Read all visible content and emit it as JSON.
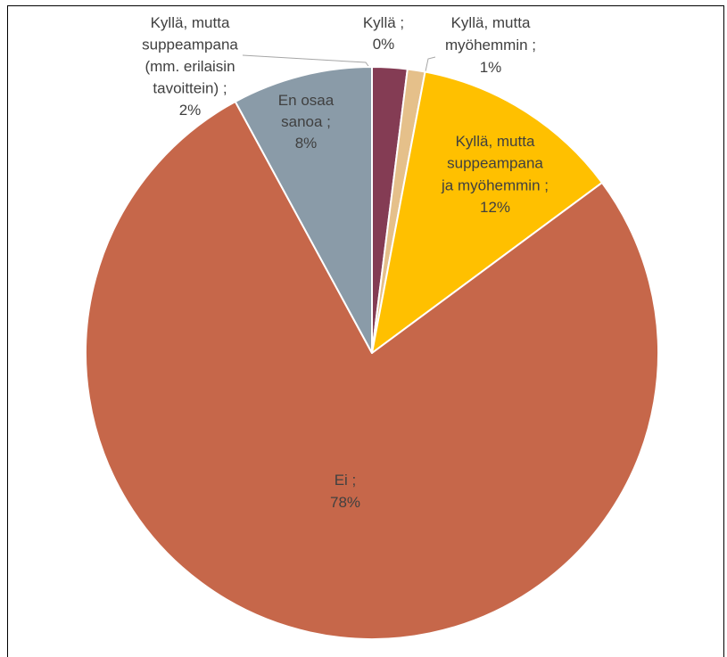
{
  "chart_data": {
    "type": "pie",
    "categories": [
      "Kyllä ;",
      "Kyllä, mutta\nsuppeampana\n(mm. erilaisin\ntavoittein) ;",
      "Kyllä, mutta\nmyöhemmin ;",
      "Kyllä, mutta\nsuppeampana\nja myöhemmin ;",
      "Ei ;",
      "En osaa\nsanoa ;"
    ],
    "values": [
      0,
      2,
      1,
      12,
      78,
      8
    ],
    "value_labels": [
      "0%",
      "2%",
      "1%",
      "12%",
      "78%",
      "8%"
    ],
    "colors": [
      "#843c54",
      "#843c54",
      "#e5c08a",
      "#ffc000",
      "#c6674a",
      "#8a9ba8"
    ]
  }
}
